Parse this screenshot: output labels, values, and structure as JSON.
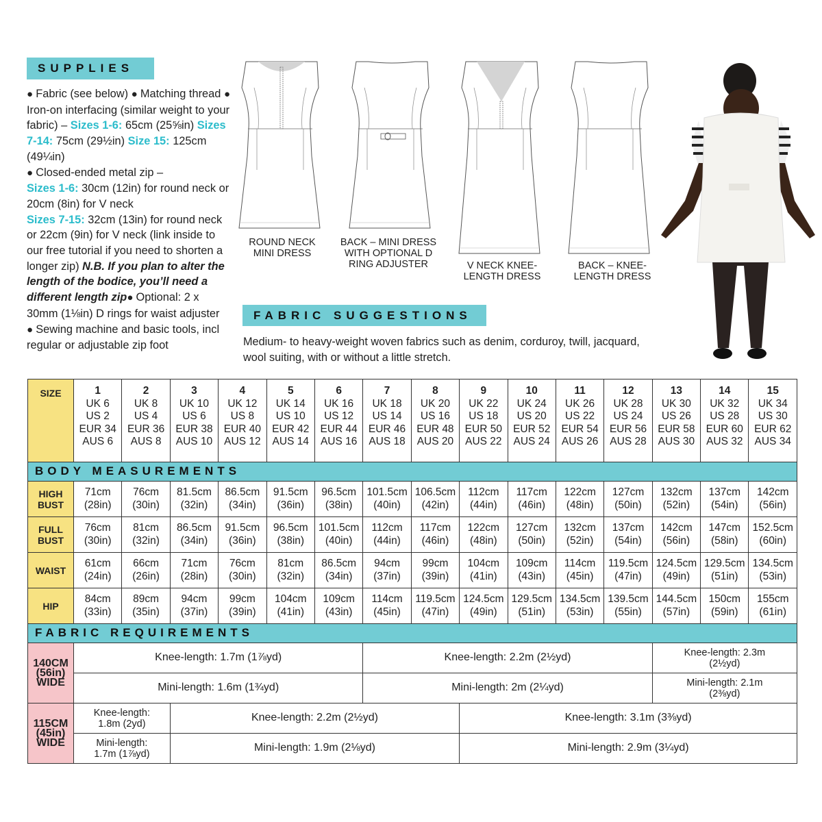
{
  "supplies": {
    "title": "SUPPLIES",
    "segments": [
      {
        "t": "● ",
        "s": "bullet"
      },
      {
        "t": "Fabric (see below) ",
        "s": "n"
      },
      {
        "t": "● ",
        "s": "bullet"
      },
      {
        "t": "Matching thread ",
        "s": "n"
      },
      {
        "t": "● ",
        "s": "bullet"
      },
      {
        "t": "Iron-on interfacing (similar weight to your fabric) – ",
        "s": "n"
      },
      {
        "t": "Sizes 1-6:",
        "s": "cyan"
      },
      {
        "t": " 65cm (25⅝in) ",
        "s": "n"
      },
      {
        "t": "Sizes 7-14:",
        "s": "cyan"
      },
      {
        "t": " 75cm (29½in) ",
        "s": "n"
      },
      {
        "t": "Size 15:",
        "s": "cyan"
      },
      {
        "t": " 125cm (49¼in)",
        "s": "n"
      },
      {
        "t": "br",
        "s": "br"
      },
      {
        "t": "● ",
        "s": "bullet"
      },
      {
        "t": "Closed-ended metal zip –",
        "s": "n"
      },
      {
        "t": "br",
        "s": "br"
      },
      {
        "t": "Sizes 1-6:",
        "s": "cyan"
      },
      {
        "t": " 30cm (12in) for round neck or 20cm (8in) for V neck",
        "s": "n"
      },
      {
        "t": "br",
        "s": "br"
      },
      {
        "t": "Sizes 7-15:",
        "s": "cyan"
      },
      {
        "t": " 32cm (13in) for round neck or 22cm (9in) for V neck (link inside to our free tutorial if you need to shorten a longer zip) ",
        "s": "n"
      },
      {
        "t": "N.B. If you plan to alter the length of the bodice, you’ll need a different length zip",
        "s": "ital"
      },
      {
        "t": "● ",
        "s": "bullet"
      },
      {
        "t": "Optional: 2 x 30mm (1⅛in) D rings for waist adjuster",
        "s": "n"
      },
      {
        "t": "br",
        "s": "br"
      },
      {
        "t": "● ",
        "s": "bullet"
      },
      {
        "t": "Sewing machine and basic tools, incl regular or adjustable zip foot",
        "s": "n"
      }
    ]
  },
  "views": [
    {
      "label": "ROUND NECK MINI DRESS",
      "neck": "round",
      "length": "mini",
      "zip": true,
      "ring": false
    },
    {
      "label": "BACK – MINI DRESS WITH OPTIONAL D RING ADJUSTER",
      "neck": "back",
      "length": "mini",
      "zip": false,
      "ring": true
    },
    {
      "label": "V NECK KNEE-LENGTH DRESS",
      "neck": "v",
      "length": "knee",
      "zip": true,
      "ring": false
    },
    {
      "label": "BACK – KNEE-LENGTH DRESS",
      "neck": "back",
      "length": "knee",
      "zip": false,
      "ring": false
    }
  ],
  "fabric_suggestions": {
    "title": "FABRIC SUGGESTIONS",
    "text": "Medium- to heavy-weight woven fabrics such as denim, corduroy, twill, jacquard, wool suiting, with or without a little stretch."
  },
  "size_chart": {
    "size_label": "SIZE",
    "sizes": [
      {
        "n": "1",
        "uk": "UK 6",
        "us": "US 2",
        "eur": "EUR 34",
        "aus": "AUS 6"
      },
      {
        "n": "2",
        "uk": "UK 8",
        "us": "US 4",
        "eur": "EUR 36",
        "aus": "AUS 8"
      },
      {
        "n": "3",
        "uk": "UK 10",
        "us": "US 6",
        "eur": "EUR 38",
        "aus": "AUS 10"
      },
      {
        "n": "4",
        "uk": "UK 12",
        "us": "US 8",
        "eur": "EUR 40",
        "aus": "AUS 12"
      },
      {
        "n": "5",
        "uk": "UK 14",
        "us": "US 10",
        "eur": "EUR 42",
        "aus": "AUS 14"
      },
      {
        "n": "6",
        "uk": "UK 16",
        "us": "US 12",
        "eur": "EUR 44",
        "aus": "AUS 16"
      },
      {
        "n": "7",
        "uk": "UK 18",
        "us": "US 14",
        "eur": "EUR 46",
        "aus": "AUS 18"
      },
      {
        "n": "8",
        "uk": "UK 20",
        "us": "US 16",
        "eur": "EUR 48",
        "aus": "AUS 20"
      },
      {
        "n": "9",
        "uk": "UK 22",
        "us": "US 18",
        "eur": "EUR 50",
        "aus": "AUS 22"
      },
      {
        "n": "10",
        "uk": "UK 24",
        "us": "US 20",
        "eur": "EUR 52",
        "aus": "AUS 24"
      },
      {
        "n": "11",
        "uk": "UK 26",
        "us": "US 22",
        "eur": "EUR 54",
        "aus": "AUS 26"
      },
      {
        "n": "12",
        "uk": "UK 28",
        "us": "US 24",
        "eur": "EUR 56",
        "aus": "AUS 28"
      },
      {
        "n": "13",
        "uk": "UK 30",
        "us": "US 26",
        "eur": "EUR 58",
        "aus": "AUS 30"
      },
      {
        "n": "14",
        "uk": "UK 32",
        "us": "US 28",
        "eur": "EUR 60",
        "aus": "AUS 32"
      },
      {
        "n": "15",
        "uk": "UK 34",
        "us": "US 30",
        "eur": "EUR 62",
        "aus": "AUS 34"
      }
    ],
    "body_title": "BODY MEASUREMENTS",
    "measurements": [
      {
        "label": "HIGH BUST",
        "values": [
          [
            "71cm",
            "(28in)"
          ],
          [
            "76cm",
            "(30in)"
          ],
          [
            "81.5cm",
            "(32in)"
          ],
          [
            "86.5cm",
            "(34in)"
          ],
          [
            "91.5cm",
            "(36in)"
          ],
          [
            "96.5cm",
            "(38in)"
          ],
          [
            "101.5cm",
            "(40in)"
          ],
          [
            "106.5cm",
            "(42in)"
          ],
          [
            "112cm",
            "(44in)"
          ],
          [
            "117cm",
            "(46in)"
          ],
          [
            "122cm",
            "(48in)"
          ],
          [
            "127cm",
            "(50in)"
          ],
          [
            "132cm",
            "(52in)"
          ],
          [
            "137cm",
            "(54in)"
          ],
          [
            "142cm",
            "(56in)"
          ]
        ]
      },
      {
        "label": "FULL BUST",
        "values": [
          [
            "76cm",
            "(30in)"
          ],
          [
            "81cm",
            "(32in)"
          ],
          [
            "86.5cm",
            "(34in)"
          ],
          [
            "91.5cm",
            "(36in)"
          ],
          [
            "96.5cm",
            "(38in)"
          ],
          [
            "101.5cm",
            "(40in)"
          ],
          [
            "112cm",
            "(44in)"
          ],
          [
            "117cm",
            "(46in)"
          ],
          [
            "122cm",
            "(48in)"
          ],
          [
            "127cm",
            "(50in)"
          ],
          [
            "132cm",
            "(52in)"
          ],
          [
            "137cm",
            "(54in)"
          ],
          [
            "142cm",
            "(56in)"
          ],
          [
            "147cm",
            "(58in)"
          ],
          [
            "152.5cm",
            "(60in)"
          ]
        ]
      },
      {
        "label": "WAIST",
        "values": [
          [
            "61cm",
            "(24in)"
          ],
          [
            "66cm",
            "(26in)"
          ],
          [
            "71cm",
            "(28in)"
          ],
          [
            "76cm",
            "(30in)"
          ],
          [
            "81cm",
            "(32in)"
          ],
          [
            "86.5cm",
            "(34in)"
          ],
          [
            "94cm",
            "(37in)"
          ],
          [
            "99cm",
            "(39in)"
          ],
          [
            "104cm",
            "(41in)"
          ],
          [
            "109cm",
            "(43in)"
          ],
          [
            "114cm",
            "(45in)"
          ],
          [
            "119.5cm",
            "(47in)"
          ],
          [
            "124.5cm",
            "(49in)"
          ],
          [
            "129.5cm",
            "(51in)"
          ],
          [
            "134.5cm",
            "(53in)"
          ]
        ]
      },
      {
        "label": "HIP",
        "values": [
          [
            "84cm",
            "(33in)"
          ],
          [
            "89cm",
            "(35in)"
          ],
          [
            "94cm",
            "(37in)"
          ],
          [
            "99cm",
            "(39in)"
          ],
          [
            "104cm",
            "(41in)"
          ],
          [
            "109cm",
            "(43in)"
          ],
          [
            "114cm",
            "(45in)"
          ],
          [
            "119.5cm",
            "(47in)"
          ],
          [
            "124.5cm",
            "(49in)"
          ],
          [
            "129.5cm",
            "(51in)"
          ],
          [
            "134.5cm",
            "(53in)"
          ],
          [
            "139.5cm",
            "(55in)"
          ],
          [
            "144.5cm",
            "(57in)"
          ],
          [
            "150cm",
            "(59in)"
          ],
          [
            "155cm",
            "(61in)"
          ]
        ]
      }
    ],
    "fabric_title": "FABRIC REQUIREMENTS",
    "fabric": [
      {
        "label": "140CM (56in) WIDE",
        "rows": [
          [
            {
              "text": "Knee-length: 1.7m (1⅞yd)",
              "span": 6
            },
            {
              "text": "Knee-length: 2.2m (2½yd)",
              "span": 6
            },
            {
              "text": "Knee-length: 2.3m (2½yd)",
              "span": 3
            }
          ],
          [
            {
              "text": "Mini-length: 1.6m (1¾yd)",
              "span": 6
            },
            {
              "text": "Mini-length: 2m (2¼yd)",
              "span": 6
            },
            {
              "text": "Mini-length: 2.1m (2⅜yd)",
              "span": 3
            }
          ]
        ]
      },
      {
        "label": "115CM (45in) WIDE",
        "rows": [
          [
            {
              "text": "Knee-length: 1.8m (2yd)",
              "span": 2
            },
            {
              "text": "Knee-length: 2.2m (2½yd)",
              "span": 6
            },
            {
              "text": "Knee-length: 3.1m (3⅜yd)",
              "span": 7
            }
          ],
          [
            {
              "text": "Mini-length: 1.7m (1⅞yd)",
              "span": 2
            },
            {
              "text": "Mini-length: 1.9m (2⅛yd)",
              "span": 6
            },
            {
              "text": "Mini-length: 2.9m (3¼yd)",
              "span": 7
            }
          ]
        ]
      }
    ]
  },
  "colors": {
    "teal": "#72ccd4",
    "yellow": "#f7e282",
    "pink": "#f6c5c9",
    "cyan_text": "#2bbccb"
  }
}
